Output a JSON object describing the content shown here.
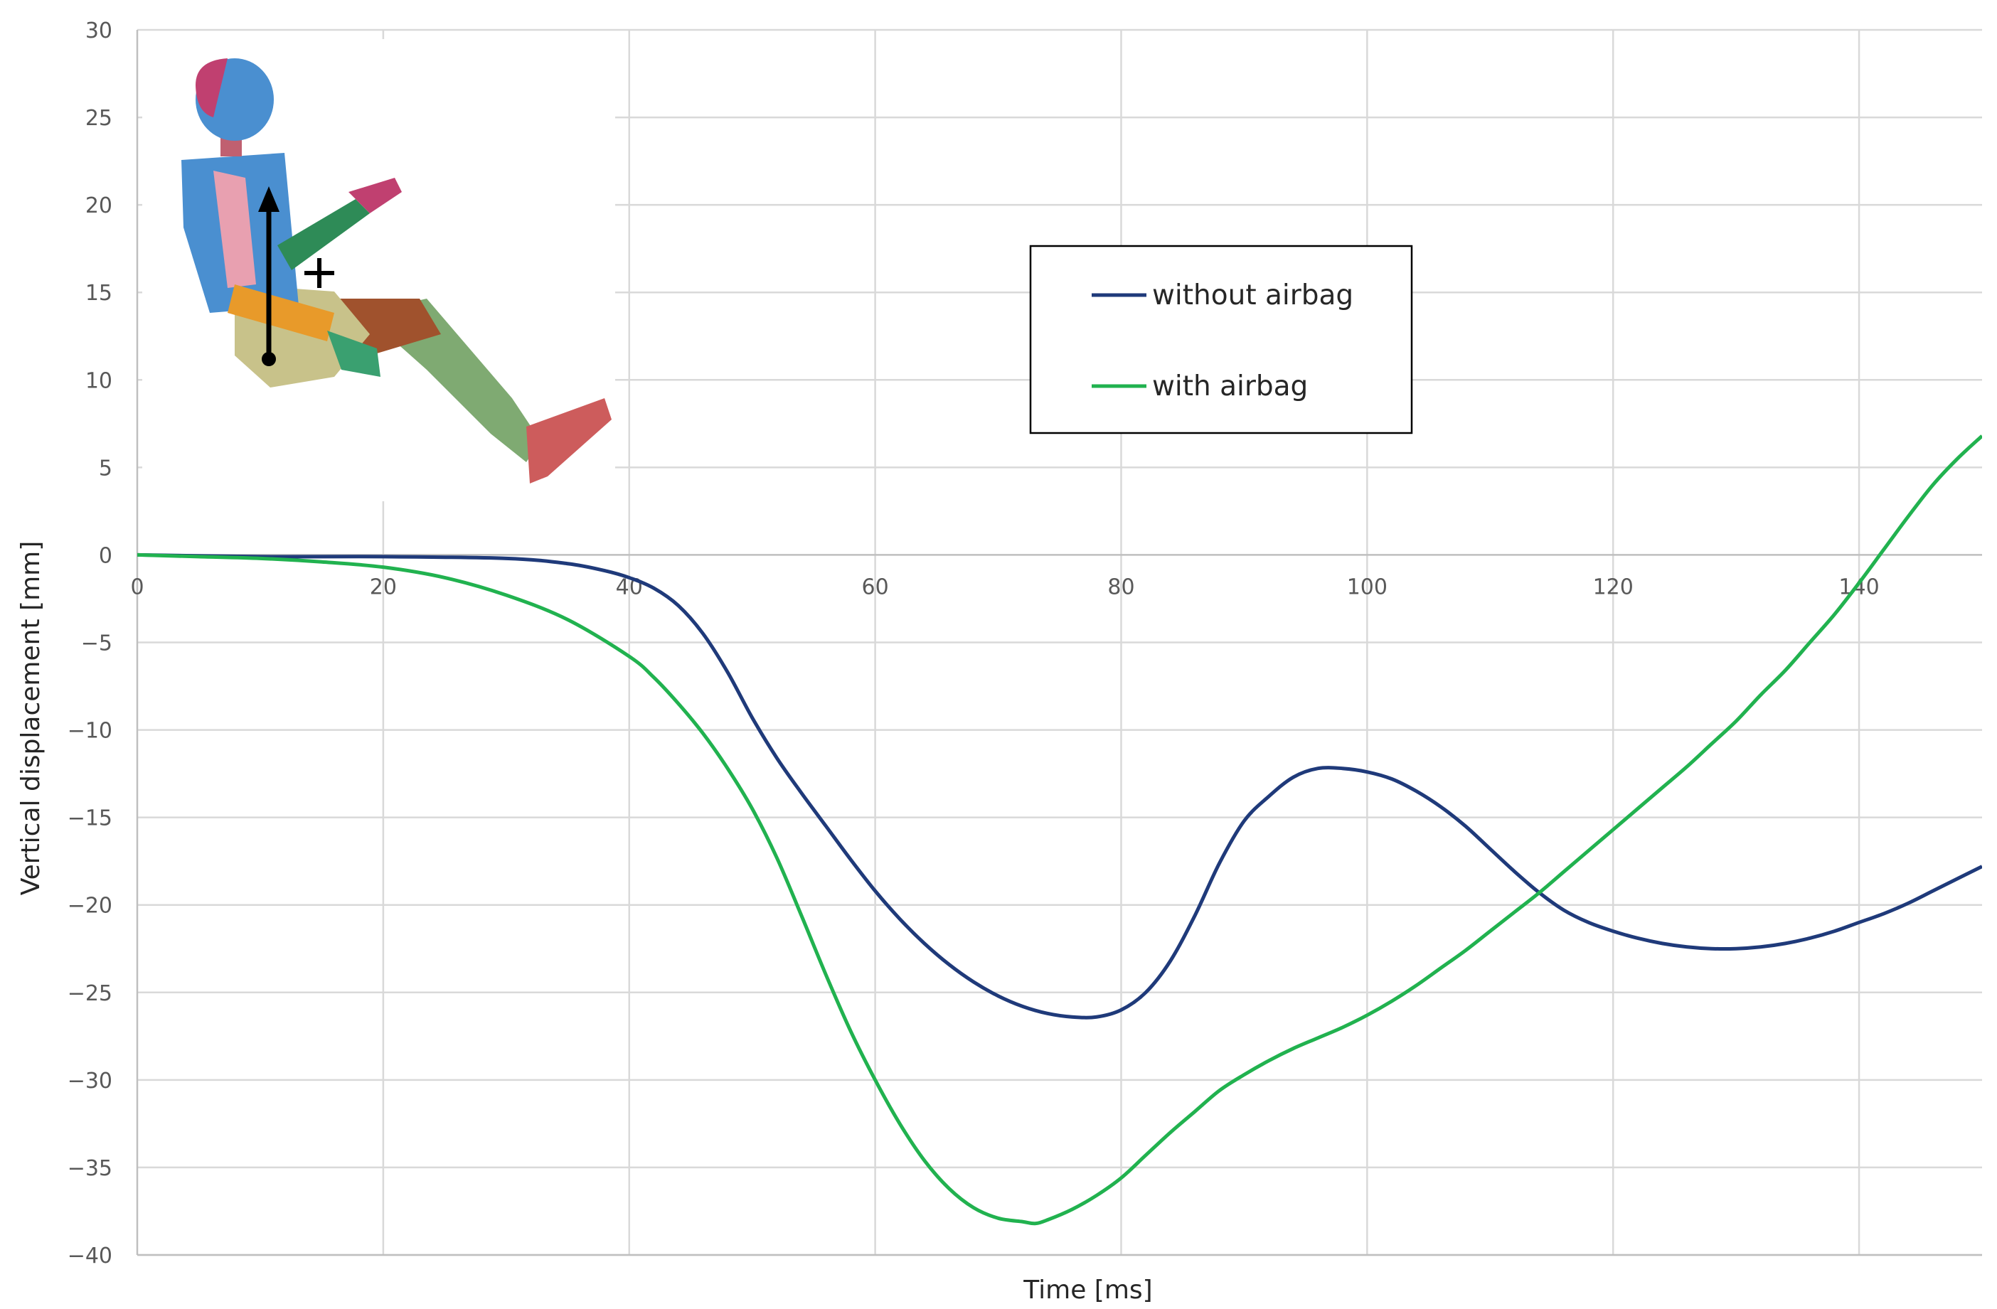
{
  "chart_data": {
    "type": "line",
    "xlabel": "Time [ms]",
    "ylabel": "Vertical displacement  [mm]",
    "xlim": [
      0,
      150
    ],
    "ylim": [
      -40,
      30
    ],
    "x_ticks": [
      0,
      20,
      40,
      60,
      80,
      100,
      120,
      140
    ],
    "y_ticks": [
      30,
      25,
      20,
      15,
      10,
      5,
      0,
      -5,
      -10,
      -15,
      -20,
      -25,
      -30,
      -35,
      -40
    ],
    "grid": true,
    "legend_position": "upper-center",
    "series": [
      {
        "name": "without airbag",
        "color": "#1f3a7a",
        "x": [
          0,
          10,
          20,
          30,
          35,
          38,
          40,
          42,
          44,
          46,
          48,
          50,
          52,
          54,
          56,
          58,
          60,
          62,
          64,
          66,
          68,
          70,
          72,
          74,
          76,
          78,
          80,
          82,
          84,
          86,
          88,
          90,
          92,
          94,
          96,
          98,
          100,
          102,
          104,
          106,
          108,
          110,
          112,
          114,
          116,
          118,
          120,
          122,
          124,
          126,
          128,
          130,
          132,
          134,
          136,
          138,
          140,
          142,
          144,
          146,
          148,
          150
        ],
        "y": [
          0,
          -0.1,
          -0.1,
          -0.2,
          -0.5,
          -0.9,
          -1.3,
          -1.9,
          -2.9,
          -4.5,
          -6.7,
          -9.3,
          -11.6,
          -13.6,
          -15.5,
          -17.4,
          -19.2,
          -20.8,
          -22.2,
          -23.4,
          -24.4,
          -25.2,
          -25.8,
          -26.2,
          -26.4,
          -26.4,
          -26.0,
          -25.0,
          -23.2,
          -20.6,
          -17.6,
          -15.2,
          -13.8,
          -12.7,
          -12.2,
          -12.2,
          -12.4,
          -12.8,
          -13.5,
          -14.4,
          -15.5,
          -16.8,
          -18.1,
          -19.3,
          -20.3,
          -21.0,
          -21.5,
          -21.9,
          -22.2,
          -22.4,
          -22.5,
          -22.5,
          -22.4,
          -22.2,
          -21.9,
          -21.5,
          -21.0,
          -20.5,
          -19.9,
          -19.2,
          -18.5,
          -17.8
        ]
      },
      {
        "name": "with airbag",
        "color": "#21b24f",
        "x": [
          0,
          5,
          10,
          15,
          20,
          25,
          30,
          35,
          40,
          42,
          44,
          46,
          48,
          50,
          52,
          54,
          56,
          58,
          60,
          62,
          64,
          66,
          68,
          70,
          72,
          73,
          74,
          76,
          78,
          80,
          82,
          84,
          86,
          88,
          90,
          92,
          94,
          96,
          98,
          100,
          102,
          104,
          106,
          108,
          110,
          112,
          114,
          116,
          118,
          120,
          122,
          124,
          126,
          128,
          130,
          132,
          134,
          136,
          138,
          140,
          142,
          144,
          146,
          148,
          150
        ],
        "y": [
          0,
          -0.1,
          -0.2,
          -0.4,
          -0.7,
          -1.3,
          -2.3,
          -3.7,
          -5.8,
          -7.0,
          -8.5,
          -10.2,
          -12.2,
          -14.5,
          -17.3,
          -20.6,
          -24.0,
          -27.2,
          -30.0,
          -32.5,
          -34.6,
          -36.2,
          -37.3,
          -37.9,
          -38.1,
          -38.2,
          -38.0,
          -37.4,
          -36.6,
          -35.6,
          -34.3,
          -33.0,
          -31.8,
          -30.6,
          -29.7,
          -28.9,
          -28.2,
          -27.6,
          -27.0,
          -26.3,
          -25.5,
          -24.6,
          -23.6,
          -22.6,
          -21.5,
          -20.4,
          -19.3,
          -18.1,
          -16.9,
          -15.7,
          -14.5,
          -13.3,
          -12.1,
          -10.8,
          -9.5,
          -8.0,
          -6.6,
          -5.0,
          -3.4,
          -1.6,
          0.3,
          2.2,
          4.0,
          5.5,
          6.8
        ]
      }
    ]
  },
  "inset": {
    "description_icon": "crash-test-dummy-icon"
  }
}
